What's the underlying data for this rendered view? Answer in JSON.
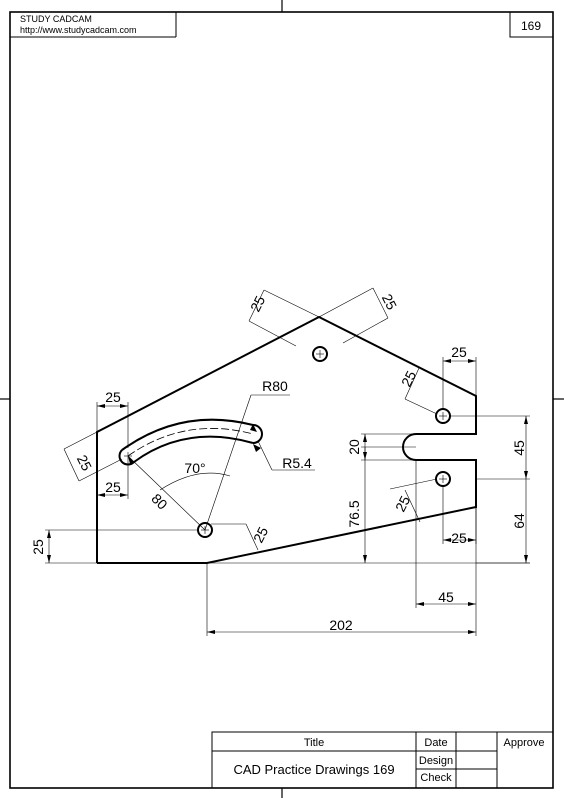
{
  "header": {
    "brand": "STUDY CADCAM",
    "url": "http://www.studycadcam.com",
    "sheet_number": "169"
  },
  "title_block": {
    "title_label": "Title",
    "title_value": "CAD Practice Drawings 169",
    "date_label": "Date",
    "design_label": "Design",
    "check_label": "Check",
    "approve_label": "Approve"
  },
  "dimensions": {
    "d25_top_left": "25",
    "d25_top_right": "25",
    "d25_right_top": "25",
    "d25_right_slanted": "25",
    "d45_right": "45",
    "d20": "20",
    "d25_left_top": "25",
    "d25_left_slanted": "25",
    "d25_left_bottom": "25",
    "d25_far_left": "25",
    "d25_hole_slanted": "25",
    "r80": "R80",
    "r5_4": "R5.4",
    "angle70": "70°",
    "d80": "80",
    "d76_5": "76.5",
    "d25_lower_slanted": "25",
    "d25_lower_right": "25",
    "d64": "64",
    "d45_bottom": "45",
    "d202": "202"
  }
}
